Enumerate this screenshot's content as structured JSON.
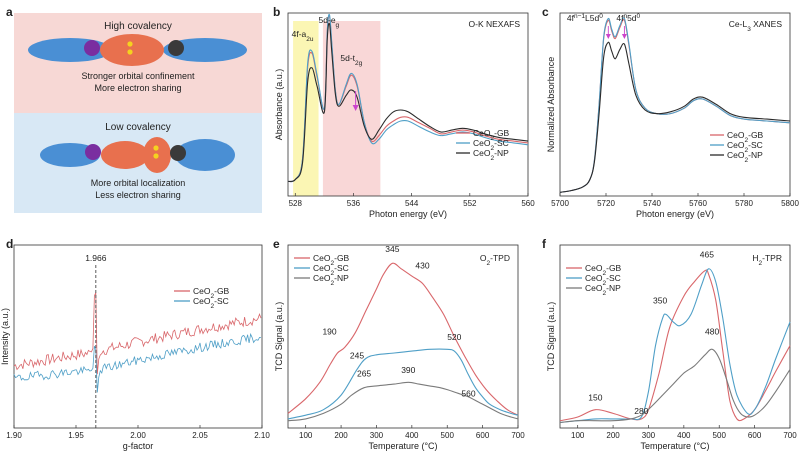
{
  "colors": {
    "gb": "#d9676b",
    "sc": "#4f9fc7",
    "np": "#2b2b2b",
    "np_gray": "#7b7b7b",
    "high_bg": "#f7d8d5",
    "low_bg": "#d8e8f5",
    "yellow_band": "#fbf6b4",
    "pink_band": "#f9d7d7",
    "arrow": "#cc44cc"
  },
  "panel_labels": [
    "a",
    "b",
    "c",
    "d",
    "e",
    "f"
  ],
  "schematic": {
    "high": {
      "title": "High covalency",
      "line1": "Stronger orbital confinement",
      "line2": "More electron sharing"
    },
    "low": {
      "title": "Low covalency",
      "line1": "More orbital localization",
      "line2": "Less electron sharing"
    }
  },
  "chart_data": [
    {
      "panel": "b",
      "type": "line",
      "title": "O-K NEXAFS",
      "xlabel": "Photon energy (eV)",
      "ylabel": "Absorbance (a.u.)",
      "xlim": [
        527,
        560
      ],
      "ylim": [
        0,
        1
      ],
      "xticks": [
        528,
        536,
        544,
        552,
        560
      ],
      "annotations": [
        {
          "text": "4f-a",
          "sub": "2u",
          "tail": ""
        },
        {
          "text": "5d-e",
          "sub": "g",
          "tail": ""
        },
        {
          "text": "5d-t",
          "sub": "2g",
          "tail": ""
        }
      ],
      "legend": [
        "CeO2-GB",
        "CeO2-SC",
        "CeO2-NP"
      ],
      "legend_display": [
        {
          "pre": "CeO",
          "sub": "2",
          "post": "-GB"
        },
        {
          "pre": "CeO",
          "sub": "2",
          "post": "-SC"
        },
        {
          "pre": "CeO",
          "sub": "2",
          "post": "-NP"
        }
      ],
      "series": [
        {
          "name": "CeO2-GB",
          "x": [
            527,
            528,
            529,
            529.7,
            530.3,
            531,
            532,
            532.4,
            532.7,
            533,
            533.5,
            534,
            535,
            535.7,
            536.5,
            537.5,
            538.5,
            539.5,
            540.5,
            541.5,
            542.5,
            543.5,
            545,
            546.5,
            548,
            549.5,
            551,
            552.5,
            554,
            556,
            558,
            560
          ],
          "y": [
            0.08,
            0.09,
            0.2,
            0.7,
            0.78,
            0.65,
            0.48,
            0.9,
            0.98,
            0.84,
            0.58,
            0.5,
            0.6,
            0.66,
            0.6,
            0.4,
            0.3,
            0.33,
            0.38,
            0.41,
            0.43,
            0.43,
            0.4,
            0.37,
            0.34,
            0.35,
            0.36,
            0.35,
            0.33,
            0.31,
            0.3,
            0.29
          ]
        },
        {
          "name": "CeO2-SC",
          "x": [
            527,
            528,
            529,
            529.7,
            530.3,
            531,
            532,
            532.4,
            532.7,
            533,
            533.5,
            534,
            535,
            535.7,
            536.5,
            537.5,
            538.5,
            539.5,
            540.5,
            541.5,
            542.5,
            543.5,
            545,
            546.5,
            548,
            549.5,
            551,
            552.5,
            554,
            556,
            558,
            560
          ],
          "y": [
            0.08,
            0.09,
            0.2,
            0.72,
            0.79,
            0.66,
            0.48,
            0.9,
            0.99,
            0.85,
            0.58,
            0.5,
            0.61,
            0.67,
            0.61,
            0.4,
            0.29,
            0.31,
            0.36,
            0.39,
            0.41,
            0.41,
            0.38,
            0.35,
            0.33,
            0.34,
            0.35,
            0.34,
            0.32,
            0.3,
            0.29,
            0.28
          ]
        },
        {
          "name": "CeO2-NP",
          "x": [
            527,
            528,
            529,
            529.7,
            530.3,
            531,
            532,
            532.4,
            532.7,
            533,
            533.5,
            534,
            535,
            535.7,
            536.5,
            537.5,
            538.5,
            539.5,
            540.5,
            541.5,
            542.5,
            543.5,
            545,
            546.5,
            548,
            549.5,
            551,
            552.5,
            554,
            556,
            558,
            560
          ],
          "y": [
            0.08,
            0.09,
            0.18,
            0.62,
            0.7,
            0.6,
            0.46,
            0.86,
            0.94,
            0.8,
            0.56,
            0.49,
            0.55,
            0.58,
            0.54,
            0.38,
            0.31,
            0.36,
            0.42,
            0.46,
            0.47,
            0.46,
            0.42,
            0.38,
            0.35,
            0.36,
            0.37,
            0.36,
            0.34,
            0.32,
            0.31,
            0.3
          ]
        }
      ]
    },
    {
      "panel": "c",
      "type": "line",
      "title": "Ce-L3 XANES",
      "title_display": {
        "pre": "Ce-L",
        "sub": "3",
        "post": " XANES"
      },
      "xlabel": "Photon energy (eV)",
      "ylabel": "Normalized Absorbance",
      "xlim": [
        5700,
        5800
      ],
      "ylim": [
        0,
        1
      ],
      "xticks": [
        5700,
        5720,
        5740,
        5760,
        5780,
        5800
      ],
      "annotations": [
        {
          "text": "4f^(n-1)L5d^0"
        },
        {
          "text": "4f^n5d^0"
        }
      ],
      "annotation_display": [
        {
          "a": "4f",
          "sup1": "n−1",
          "b": "L5d",
          "sup2": "0"
        },
        {
          "a": "4f",
          "sup1": "n",
          "b": "5d",
          "sup2": "0"
        }
      ],
      "legend": [
        "CeO2-GB",
        "CeO2-SC",
        "CeO2-NP"
      ],
      "series": [
        {
          "name": "CeO2-GB",
          "x": [
            5700,
            5705,
            5710,
            5713,
            5715,
            5717,
            5719,
            5721,
            5722.5,
            5724,
            5726,
            5728,
            5730,
            5733,
            5737,
            5742,
            5748,
            5754,
            5758,
            5762,
            5768,
            5774,
            5780,
            5790,
            5800
          ],
          "y": [
            0.02,
            0.03,
            0.05,
            0.09,
            0.2,
            0.5,
            0.86,
            0.96,
            0.9,
            0.86,
            0.92,
            0.96,
            0.82,
            0.58,
            0.48,
            0.45,
            0.45,
            0.48,
            0.52,
            0.53,
            0.49,
            0.44,
            0.42,
            0.41,
            0.4
          ]
        },
        {
          "name": "CeO2-SC",
          "x": [
            5700,
            5705,
            5710,
            5713,
            5715,
            5717,
            5719,
            5721,
            5722.5,
            5724,
            5726,
            5728,
            5730,
            5733,
            5737,
            5742,
            5748,
            5754,
            5758,
            5762,
            5768,
            5774,
            5780,
            5790,
            5800
          ],
          "y": [
            0.02,
            0.03,
            0.05,
            0.09,
            0.2,
            0.5,
            0.87,
            0.97,
            0.91,
            0.87,
            0.93,
            0.97,
            0.83,
            0.58,
            0.48,
            0.45,
            0.45,
            0.48,
            0.52,
            0.53,
            0.49,
            0.44,
            0.42,
            0.41,
            0.4
          ]
        },
        {
          "name": "CeO2-NP",
          "x": [
            5700,
            5705,
            5710,
            5713,
            5715,
            5717,
            5719,
            5721,
            5722.5,
            5724,
            5726,
            5728,
            5730,
            5733,
            5737,
            5742,
            5748,
            5754,
            5758,
            5762,
            5768,
            5774,
            5780,
            5790,
            5800
          ],
          "y": [
            0.02,
            0.03,
            0.05,
            0.09,
            0.19,
            0.45,
            0.76,
            0.84,
            0.79,
            0.75,
            0.8,
            0.83,
            0.72,
            0.55,
            0.47,
            0.45,
            0.46,
            0.49,
            0.53,
            0.54,
            0.5,
            0.45,
            0.43,
            0.42,
            0.41
          ]
        }
      ]
    },
    {
      "panel": "d",
      "type": "line",
      "title": "",
      "xlabel": "g-factor",
      "ylabel": "Intensity (a.u.)",
      "xlim": [
        1.9,
        2.1
      ],
      "ylim": [
        0,
        1
      ],
      "xticks": [
        1.9,
        1.95,
        2.0,
        2.05,
        2.1
      ],
      "xtick_labels": [
        "1.90",
        "1.95",
        "2.00",
        "2.05",
        "2.10"
      ],
      "annotations": [
        {
          "text": "1.966",
          "x": 1.966
        }
      ],
      "legend": [
        "CeO2-GB",
        "CeO2-SC"
      ],
      "series": [
        {
          "name": "CeO2-GB",
          "noise": 0.03,
          "seed": 7,
          "points": [
            [
              1.9,
              0.34
            ],
            [
              1.95,
              0.4
            ],
            [
              1.962,
              0.41
            ],
            [
              1.964,
              0.44
            ],
            [
              1.9655,
              0.97
            ],
            [
              1.967,
              0.28
            ],
            [
              1.969,
              0.42
            ],
            [
              2.0,
              0.47
            ],
            [
              2.05,
              0.54
            ],
            [
              2.1,
              0.6
            ]
          ]
        },
        {
          "name": "CeO2-SC",
          "noise": 0.025,
          "seed": 19,
          "points": [
            [
              1.9,
              0.27
            ],
            [
              1.95,
              0.31
            ],
            [
              1.962,
              0.31
            ],
            [
              1.964,
              0.33
            ],
            [
              1.9655,
              0.55
            ],
            [
              1.967,
              0.18
            ],
            [
              1.969,
              0.32
            ],
            [
              2.0,
              0.37
            ],
            [
              2.05,
              0.44
            ],
            [
              2.1,
              0.5
            ]
          ]
        }
      ]
    },
    {
      "panel": "e",
      "type": "line",
      "title": "O2-TPD",
      "title_display": {
        "pre": "O",
        "sub": "2",
        "post": "-TPD"
      },
      "xlabel": "Temperature (°C)",
      "ylabel": "TCD Signal (a.u.)",
      "xlim": [
        50,
        700
      ],
      "ylim": [
        0,
        1
      ],
      "xticks": [
        100,
        200,
        300,
        400,
        500,
        600,
        700
      ],
      "annotations": [
        {
          "text": "345",
          "x": 345
        },
        {
          "text": "430",
          "x": 430
        },
        {
          "text": "190",
          "x": 190
        },
        {
          "text": "520",
          "x": 520
        },
        {
          "text": "245",
          "x": 245
        },
        {
          "text": "265",
          "x": 265
        },
        {
          "text": "390",
          "x": 390
        },
        {
          "text": "560",
          "x": 560
        }
      ],
      "legend": [
        "CeO2-GB",
        "CeO2-SC",
        "CeO2-NP"
      ],
      "series": [
        {
          "name": "CeO2-GB",
          "x": [
            50,
            100,
            140,
            170,
            190,
            210,
            240,
            270,
            300,
            320,
            345,
            370,
            400,
            430,
            460,
            490,
            520,
            550,
            580,
            610,
            640,
            670,
            700
          ],
          "y": [
            0.08,
            0.16,
            0.25,
            0.35,
            0.41,
            0.44,
            0.52,
            0.64,
            0.76,
            0.84,
            0.9,
            0.87,
            0.83,
            0.79,
            0.71,
            0.62,
            0.5,
            0.39,
            0.29,
            0.21,
            0.15,
            0.1,
            0.07
          ]
        },
        {
          "name": "CeO2-SC",
          "x": [
            50,
            100,
            150,
            200,
            245,
            270,
            300,
            350,
            400,
            450,
            500,
            520,
            540,
            560,
            580,
            600,
            620,
            650,
            680,
            700
          ],
          "y": [
            0.05,
            0.07,
            0.1,
            0.18,
            0.32,
            0.38,
            0.4,
            0.41,
            0.42,
            0.43,
            0.43,
            0.42,
            0.37,
            0.29,
            0.22,
            0.17,
            0.13,
            0.1,
            0.08,
            0.07
          ]
        },
        {
          "name": "CeO2-NP",
          "x": [
            50,
            100,
            150,
            200,
            230,
            265,
            300,
            350,
            390,
            420,
            450,
            480,
            500,
            530,
            560,
            590,
            620,
            650,
            680,
            700
          ],
          "y": [
            0.04,
            0.05,
            0.08,
            0.13,
            0.18,
            0.22,
            0.23,
            0.24,
            0.25,
            0.24,
            0.23,
            0.22,
            0.21,
            0.19,
            0.17,
            0.14,
            0.11,
            0.08,
            0.06,
            0.05
          ]
        }
      ]
    },
    {
      "panel": "f",
      "type": "line",
      "title": "H2-TPR",
      "title_display": {
        "pre": "H",
        "sub": "2",
        "post": "-TPR"
      },
      "xlabel": "Temperature (°C)",
      "ylabel": "TCD Signal (a.u.)",
      "xlim": [
        50,
        700
      ],
      "ylim": [
        0,
        1
      ],
      "xticks": [
        100,
        200,
        300,
        400,
        500,
        600,
        700
      ],
      "annotations": [
        {
          "text": "465",
          "x": 465
        },
        {
          "text": "350",
          "x": 350
        },
        {
          "text": "480",
          "x": 480
        },
        {
          "text": "150",
          "x": 150
        },
        {
          "text": "280",
          "x": 280
        }
      ],
      "legend": [
        "CeO2-GB",
        "CeO2-SC",
        "CeO2-NP"
      ],
      "series": [
        {
          "name": "CeO2-GB",
          "x": [
            50,
            100,
            150,
            200,
            250,
            280,
            300,
            330,
            360,
            400,
            430,
            460,
            470,
            490,
            510,
            530,
            550,
            570,
            600,
            630,
            660,
            700
          ],
          "y": [
            0.04,
            0.06,
            0.1,
            0.08,
            0.05,
            0.05,
            0.1,
            0.3,
            0.55,
            0.72,
            0.8,
            0.86,
            0.84,
            0.7,
            0.42,
            0.15,
            0.05,
            0.05,
            0.1,
            0.2,
            0.31,
            0.45
          ]
        },
        {
          "name": "CeO2-SC",
          "x": [
            50,
            100,
            150,
            200,
            250,
            280,
            300,
            320,
            340,
            350,
            370,
            390,
            420,
            450,
            470,
            490,
            510,
            530,
            550,
            580,
            600,
            630,
            660,
            700
          ],
          "y": [
            0.03,
            0.04,
            0.05,
            0.05,
            0.05,
            0.06,
            0.2,
            0.45,
            0.6,
            0.62,
            0.58,
            0.56,
            0.62,
            0.78,
            0.87,
            0.8,
            0.6,
            0.35,
            0.18,
            0.08,
            0.1,
            0.22,
            0.38,
            0.58
          ]
        },
        {
          "name": "CeO2-NP",
          "x": [
            50,
            100,
            150,
            200,
            250,
            280,
            310,
            340,
            370,
            400,
            430,
            460,
            480,
            500,
            520,
            540,
            560,
            580,
            600,
            630,
            660,
            700
          ],
          "y": [
            0.03,
            0.04,
            0.04,
            0.04,
            0.05,
            0.07,
            0.12,
            0.18,
            0.24,
            0.3,
            0.34,
            0.4,
            0.43,
            0.38,
            0.27,
            0.15,
            0.08,
            0.06,
            0.07,
            0.12,
            0.2,
            0.32
          ]
        }
      ]
    }
  ]
}
